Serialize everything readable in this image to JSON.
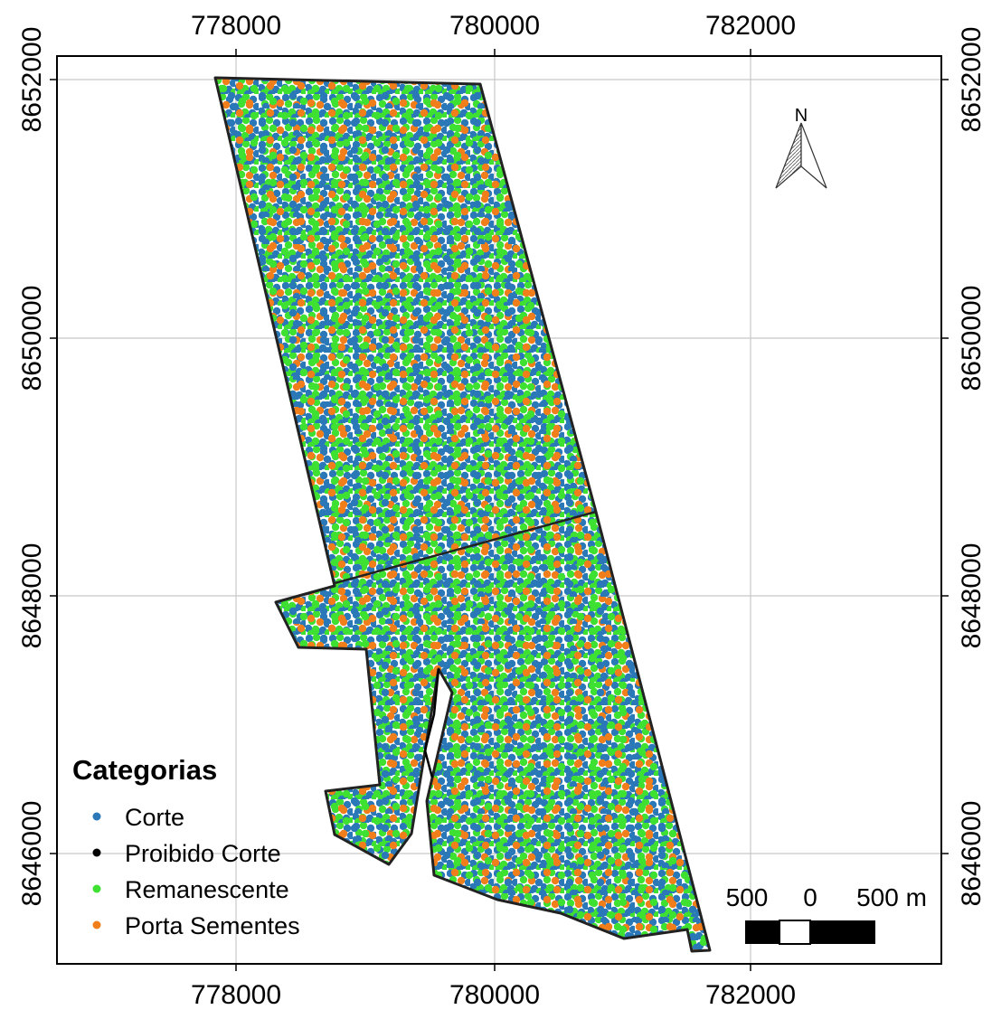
{
  "map": {
    "x_ticks": [
      "778000",
      "780000",
      "782000"
    ],
    "y_ticks": [
      "8652000",
      "8650000",
      "8648000",
      "8646000"
    ],
    "north_label": "N",
    "legend": {
      "title": "Categorias",
      "items": [
        {
          "label": "Corte",
          "color": "#2a78b8"
        },
        {
          "label": "Proibido Corte",
          "color": "#000000"
        },
        {
          "label": "Remanescente",
          "color": "#3ee032"
        },
        {
          "label": "Porta Sementes",
          "color": "#f07e1a"
        }
      ]
    },
    "scale_bar": {
      "labels": [
        "500",
        "0",
        "500 m"
      ]
    },
    "colors": {
      "corte": "#2a78b8",
      "proibido_corte": "#000000",
      "remanescente": "#3ee032",
      "porta_sementes": "#f07e1a",
      "boundary": "#222222",
      "grid": "#c8c8c8"
    }
  }
}
